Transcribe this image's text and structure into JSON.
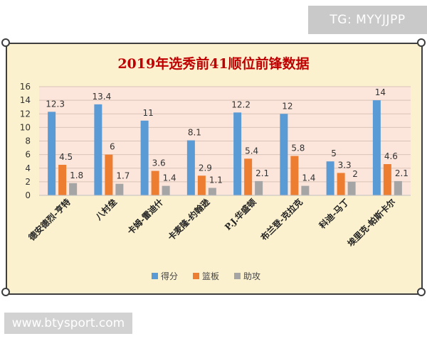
{
  "watermark_top": "TG: MYYJJPP",
  "watermark_bottom": "www.btysport.com",
  "chart_data": {
    "type": "bar",
    "title": "2019年选秀前41顺位前锋数据",
    "categories": [
      "德安德烈-亨特",
      "八村垒",
      "卡姆-雷迪什",
      "卡麦隆-约翰逊",
      "P.J.华盛顿",
      "布兰登-克拉克",
      "科迪-马丁",
      "埃里克-帕斯卡尔"
    ],
    "series": [
      {
        "name": "得分",
        "color": "#5b9bd5",
        "values": [
          12.3,
          13.4,
          11,
          8.1,
          12.2,
          12,
          5,
          14
        ]
      },
      {
        "name": "篮板",
        "color": "#ed7d31",
        "values": [
          4.5,
          6,
          3.6,
          2.9,
          5.4,
          5.8,
          3.3,
          4.6
        ]
      },
      {
        "name": "助攻",
        "color": "#a5a5a5",
        "values": [
          1.8,
          1.7,
          1.4,
          1.1,
          2.1,
          1.4,
          2,
          2.1
        ]
      }
    ],
    "ylim": [
      0,
      16
    ],
    "yticks": [
      "0",
      "2",
      "4",
      "6",
      "8",
      "10",
      "12",
      "14",
      "16"
    ],
    "value_labels": [
      [
        "12.3",
        "13.4",
        "11",
        "8.1",
        "12.2",
        "12",
        "5",
        "14"
      ],
      [
        "4.5",
        "6",
        "3.6",
        "2.9",
        "5.4",
        "5.8",
        "3.3",
        "4.6"
      ],
      [
        "1.8",
        "1.7",
        "1.4",
        "1.1",
        "2.1",
        "1.4",
        "2",
        "2.1"
      ]
    ],
    "legend_position": "bottom",
    "grid": true,
    "plot_background": "#fce5da"
  }
}
